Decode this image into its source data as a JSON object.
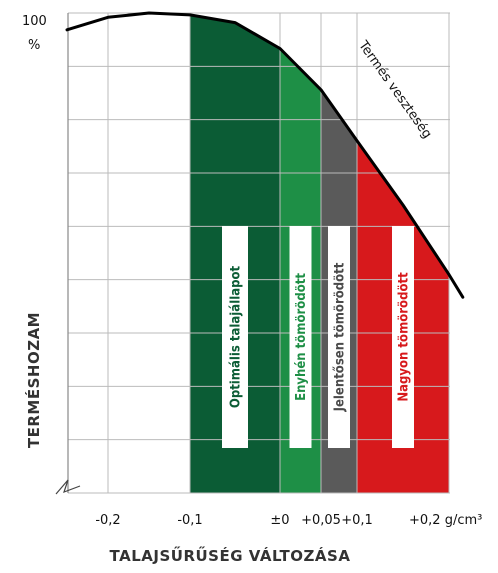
{
  "chart_data": {
    "type": "area",
    "y_axis": {
      "title": "TERMÉSHOZAM",
      "top_label": "100",
      "top_unit": "%",
      "gridlines": 9
    },
    "x_axis": {
      "title": "TALAJSŰRŰSÉG VÁLTOZÁSA",
      "ticks": [
        "-0,2",
        "-0,1",
        "±0",
        "+0,05",
        "+0,1",
        "+0,2 g/cm³"
      ],
      "tick_values": [
        -0.2,
        -0.1,
        0.0,
        0.05,
        0.1,
        0.2
      ],
      "unit": "g/cm³"
    },
    "zones": [
      {
        "label": "Optimális talajállapot",
        "from": -0.1,
        "to": 0.0,
        "color": "#0b5c35",
        "text_color": "#0b5c35"
      },
      {
        "label": "Enyhén tömörödött",
        "from": 0.0,
        "to": 0.05,
        "color": "#1e8f46",
        "text_color": "#1e8f46"
      },
      {
        "label": "Jelentősen tömörödött",
        "from": 0.05,
        "to": 0.1,
        "color": "#5a5a5a",
        "text_color": "#4a4a4a"
      },
      {
        "label": "Nagyon tömörödött",
        "from": 0.1,
        "to": 0.2,
        "color": "#d7191c",
        "text_color": "#d7191c"
      }
    ],
    "curve": {
      "name": "Termés veszteség",
      "x": [
        -0.25,
        -0.2,
        -0.15,
        -0.1,
        -0.05,
        0.0,
        0.05,
        0.1,
        0.15,
        0.2,
        0.215
      ],
      "y": [
        96.5,
        99.1,
        100.0,
        99.6,
        98.0,
        92.6,
        84.0,
        73.4,
        60.0,
        45.5,
        40.8
      ]
    },
    "y_range": [
      0,
      100
    ]
  }
}
